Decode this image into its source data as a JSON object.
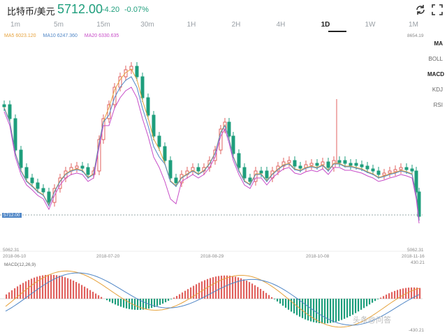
{
  "header": {
    "title": "比特币/美元",
    "price": "5712.00",
    "change": "-4.20",
    "change_pct": "-0.07%",
    "accent_color": "#1e9e7c"
  },
  "tabs": [
    "1m",
    "5m",
    "15m",
    "30m",
    "1H",
    "2H",
    "4H",
    "1D",
    "1W",
    "1M"
  ],
  "active_tab": "1D",
  "side_menu": [
    "MA",
    "BOLL",
    "MACD",
    "KDJ",
    "RSI"
  ],
  "legend": {
    "ma5": "MA5 6023.120",
    "ma10": "MA10 6247.360",
    "ma20": "MA20 6330.635"
  },
  "axis": {
    "price_high": "8654.19",
    "price_low": "5062.31",
    "price_low_right": "5062.31",
    "current_tag": "5712.00",
    "macd_high": "430.21",
    "macd_low": "-430.21",
    "dates": [
      "2018-06-10",
      "2018-07-20",
      "2018-08-29",
      "2018-10-08",
      "2018-11-16"
    ]
  },
  "macd_label": "MACD(12,26,9)",
  "watermark": "头条@问答"
}
